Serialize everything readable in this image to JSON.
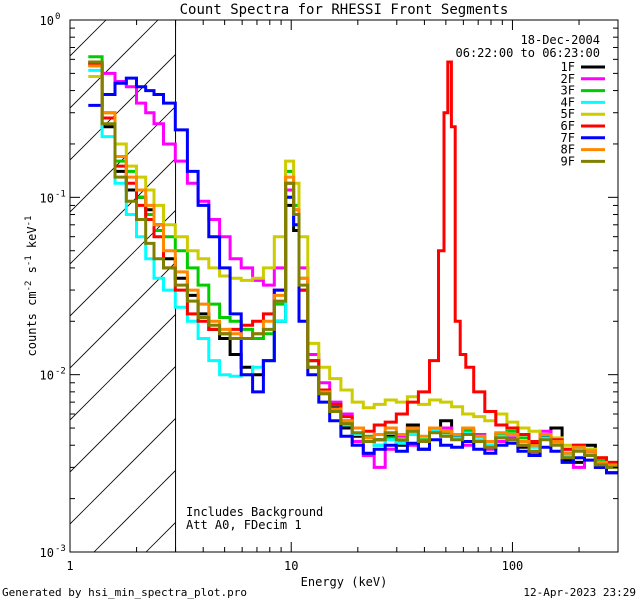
{
  "chart_data": {
    "type": "line",
    "title": "Count Spectra for RHESSI Front Segments",
    "xlabel": "Energy (keV)",
    "ylabel_parts": [
      "counts cm",
      "-2",
      " s",
      "-1",
      " keV",
      "-1"
    ],
    "x_scale": "log",
    "y_scale": "log",
    "xlim": [
      1.0,
      300.0
    ],
    "ylim": [
      0.001,
      1.0
    ],
    "x_tick_labels": [
      {
        "value": 10,
        "label": "10"
      },
      {
        "value": 100,
        "label": "100"
      }
    ],
    "y_tick_labels": [
      {
        "value": 1.0,
        "mantissa": "10",
        "exp": "0"
      },
      {
        "value": 0.1,
        "mantissa": "10",
        "exp": "-1"
      },
      {
        "value": 0.01,
        "mantissa": "10",
        "exp": "-2"
      },
      {
        "value": 0.001,
        "mantissa": "10",
        "exp": "-3"
      }
    ],
    "hatched_region": {
      "x_from": 1.0,
      "x_to": 3.0,
      "y_from": 0.001,
      "y_to": 1.0
    },
    "annotations": {
      "date": "18-Dec-2004",
      "time_range": "06:22:00 to 06:23:00",
      "note_line1": "Includes Background",
      "note_line2": "Att A0, FDecim 1"
    },
    "legend_position": "top-right",
    "series": [
      {
        "name": "1F",
        "color": "#000000",
        "x": [
          1.3,
          1.5,
          1.7,
          1.9,
          2.1,
          2.3,
          2.5,
          2.8,
          3.2,
          3.6,
          4.0,
          4.5,
          5.0,
          5.6,
          6.3,
          7.1,
          7.9,
          8.9,
          10.0,
          10.5,
          11.2,
          12.6,
          14.1,
          15.8,
          17.8,
          20,
          22.4,
          25.1,
          28.2,
          31.6,
          35.5,
          39.8,
          44.7,
          50.1,
          56.2,
          63.1,
          70.8,
          79.4,
          89.1,
          100,
          112,
          126,
          141,
          158,
          178,
          200,
          224,
          251,
          282
        ],
        "values": [
          0.56,
          0.25,
          0.14,
          0.11,
          0.1,
          0.085,
          0.07,
          0.045,
          0.035,
          0.028,
          0.022,
          0.018,
          0.016,
          0.013,
          0.011,
          0.01,
          0.012,
          0.02,
          0.09,
          0.065,
          0.03,
          0.012,
          0.008,
          0.0065,
          0.005,
          0.0045,
          0.0042,
          0.0043,
          0.0045,
          0.004,
          0.0052,
          0.0038,
          0.005,
          0.0055,
          0.0045,
          0.0048,
          0.0042,
          0.004,
          0.0046,
          0.0044,
          0.0039,
          0.0041,
          0.0045,
          0.005,
          0.0033,
          0.0032,
          0.004,
          0.003,
          0.0028
        ]
      },
      {
        "name": "2F",
        "color": "#ff00ff",
        "x": [
          1.3,
          1.5,
          1.7,
          1.9,
          2.1,
          2.3,
          2.5,
          2.8,
          3.2,
          3.6,
          4.0,
          4.5,
          5.0,
          5.6,
          6.3,
          7.1,
          7.9,
          8.9,
          10.0,
          10.5,
          11.2,
          12.6,
          14.1,
          15.8,
          17.8,
          20,
          22.4,
          25.1,
          28.2,
          31.6,
          35.5,
          39.8,
          44.7,
          50.1,
          56.2,
          63.1,
          70.8,
          79.4,
          89.1,
          100,
          112,
          126,
          141,
          158,
          178,
          200,
          224,
          251,
          282
        ],
        "values": [
          0.58,
          0.5,
          0.45,
          0.42,
          0.34,
          0.3,
          0.26,
          0.2,
          0.16,
          0.12,
          0.095,
          0.075,
          0.06,
          0.045,
          0.04,
          0.034,
          0.032,
          0.04,
          0.11,
          0.085,
          0.04,
          0.013,
          0.009,
          0.007,
          0.006,
          0.0042,
          0.0035,
          0.003,
          0.0038,
          0.0045,
          0.004,
          0.0042,
          0.0048,
          0.005,
          0.0044,
          0.004,
          0.0046,
          0.0038,
          0.0042,
          0.0044,
          0.004,
          0.0036,
          0.0048,
          0.0042,
          0.0038,
          0.003,
          0.0036,
          0.0032,
          0.003
        ]
      },
      {
        "name": "3F",
        "color": "#00cc00",
        "x": [
          1.3,
          1.5,
          1.7,
          1.9,
          2.1,
          2.3,
          2.5,
          2.8,
          3.2,
          3.6,
          4.0,
          4.5,
          5.0,
          5.6,
          6.3,
          7.1,
          7.9,
          8.9,
          10.0,
          10.5,
          11.2,
          12.6,
          14.1,
          15.8,
          17.8,
          20,
          22.4,
          25.1,
          28.2,
          31.6,
          35.5,
          39.8,
          44.7,
          50.1,
          56.2,
          63.1,
          70.8,
          79.4,
          89.1,
          100,
          112,
          126,
          141,
          158,
          178,
          200,
          224,
          251,
          282
        ],
        "values": [
          0.62,
          0.3,
          0.16,
          0.14,
          0.1,
          0.08,
          0.065,
          0.06,
          0.05,
          0.04,
          0.032,
          0.025,
          0.021,
          0.02,
          0.018,
          0.016,
          0.017,
          0.025,
          0.14,
          0.09,
          0.035,
          0.012,
          0.008,
          0.0068,
          0.0055,
          0.005,
          0.0045,
          0.004,
          0.0044,
          0.0042,
          0.0048,
          0.0043,
          0.005,
          0.0047,
          0.0046,
          0.0049,
          0.0045,
          0.0042,
          0.0046,
          0.0048,
          0.0044,
          0.004,
          0.0046,
          0.0043,
          0.0036,
          0.004,
          0.0038,
          0.0033,
          0.0031
        ]
      },
      {
        "name": "4F",
        "color": "#00ffff",
        "x": [
          1.3,
          1.5,
          1.7,
          1.9,
          2.1,
          2.3,
          2.5,
          2.8,
          3.2,
          3.6,
          4.0,
          4.5,
          5.0,
          5.6,
          6.3,
          7.1,
          7.9,
          8.9,
          10.0,
          10.5,
          11.2,
          12.6,
          14.1,
          15.8,
          17.8,
          20,
          22.4,
          25.1,
          28.2,
          31.6,
          35.5,
          39.8,
          44.7,
          50.1,
          56.2,
          63.1,
          70.8,
          79.4,
          89.1,
          100,
          112,
          126,
          141,
          158,
          178,
          200,
          224,
          251,
          282
        ],
        "values": [
          0.52,
          0.22,
          0.12,
          0.08,
          0.06,
          0.045,
          0.035,
          0.03,
          0.024,
          0.02,
          0.016,
          0.012,
          0.01,
          0.0098,
          0.01,
          0.011,
          0.012,
          0.02,
          0.1,
          0.07,
          0.03,
          0.011,
          0.0078,
          0.0062,
          0.0052,
          0.0046,
          0.0042,
          0.004,
          0.0043,
          0.0041,
          0.0046,
          0.0042,
          0.0048,
          0.0045,
          0.0044,
          0.0047,
          0.0043,
          0.004,
          0.0045,
          0.0046,
          0.0042,
          0.0039,
          0.0044,
          0.0041,
          0.0035,
          0.0038,
          0.0036,
          0.0032,
          0.003
        ]
      },
      {
        "name": "5F",
        "color": "#cccc00",
        "x": [
          1.3,
          1.5,
          1.7,
          1.9,
          2.1,
          2.3,
          2.5,
          2.8,
          3.2,
          3.6,
          4.0,
          4.5,
          5.0,
          5.6,
          6.3,
          7.1,
          7.9,
          8.9,
          10.0,
          10.5,
          11.2,
          12.6,
          14.1,
          15.8,
          17.8,
          20,
          22.4,
          25.1,
          28.2,
          31.6,
          35.5,
          39.8,
          44.7,
          50.1,
          56.2,
          63.1,
          70.8,
          79.4,
          89.1,
          100,
          112,
          126,
          141,
          158,
          178,
          200,
          224,
          251,
          282
        ],
        "values": [
          0.48,
          0.3,
          0.2,
          0.15,
          0.13,
          0.11,
          0.09,
          0.07,
          0.06,
          0.05,
          0.045,
          0.04,
          0.036,
          0.035,
          0.034,
          0.035,
          0.04,
          0.06,
          0.16,
          0.12,
          0.06,
          0.015,
          0.011,
          0.0095,
          0.0082,
          0.007,
          0.0065,
          0.0068,
          0.0072,
          0.007,
          0.0075,
          0.0068,
          0.0072,
          0.007,
          0.0066,
          0.006,
          0.0058,
          0.0055,
          0.006,
          0.0054,
          0.005,
          0.0048,
          0.0046,
          0.0044,
          0.004,
          0.004,
          0.0038,
          0.0034,
          0.0032
        ]
      },
      {
        "name": "6F",
        "color": "#ff0000",
        "x": [
          1.3,
          1.5,
          1.7,
          1.9,
          2.1,
          2.3,
          2.5,
          2.8,
          3.2,
          3.6,
          4.0,
          4.5,
          5.0,
          5.6,
          6.3,
          7.1,
          7.9,
          8.9,
          10.0,
          10.5,
          11.2,
          12.6,
          14.1,
          15.8,
          17.8,
          20,
          22.4,
          25.1,
          28.2,
          31.6,
          35.5,
          39.8,
          44.7,
          48.0,
          50.1,
          52.0,
          54.0,
          56.2,
          60.0,
          63.1,
          70.8,
          79.4,
          89.1,
          100,
          112,
          126,
          141,
          158,
          178,
          200,
          224,
          251,
          282
        ],
        "values": [
          0.57,
          0.28,
          0.15,
          0.12,
          0.09,
          0.075,
          0.06,
          0.04,
          0.03,
          0.022,
          0.02,
          0.018,
          0.017,
          0.018,
          0.019,
          0.02,
          0.022,
          0.03,
          0.12,
          0.08,
          0.03,
          0.012,
          0.0082,
          0.0068,
          0.0058,
          0.005,
          0.0048,
          0.0052,
          0.0054,
          0.006,
          0.007,
          0.008,
          0.012,
          0.05,
          0.3,
          0.58,
          0.25,
          0.02,
          0.013,
          0.011,
          0.008,
          0.0062,
          0.0052,
          0.005,
          0.0046,
          0.0042,
          0.0046,
          0.0043,
          0.0038,
          0.004,
          0.0037,
          0.0034,
          0.0032
        ]
      },
      {
        "name": "7F",
        "color": "#0000ff",
        "x": [
          1.3,
          1.5,
          1.7,
          1.9,
          2.1,
          2.3,
          2.5,
          2.8,
          3.2,
          3.6,
          4.0,
          4.5,
          5.0,
          5.6,
          6.3,
          7.1,
          7.9,
          8.9,
          10.0,
          10.5,
          11.2,
          12.6,
          14.1,
          15.8,
          17.8,
          20,
          22.4,
          25.1,
          28.2,
          31.6,
          35.5,
          39.8,
          44.7,
          50.1,
          56.2,
          63.1,
          70.8,
          79.4,
          89.1,
          100,
          112,
          126,
          141,
          158,
          178,
          200,
          224,
          251,
          282
        ],
        "values": [
          0.33,
          0.38,
          0.44,
          0.47,
          0.42,
          0.4,
          0.38,
          0.34,
          0.24,
          0.14,
          0.09,
          0.06,
          0.04,
          0.022,
          0.01,
          0.008,
          0.012,
          0.03,
          0.1,
          0.07,
          0.02,
          0.01,
          0.007,
          0.0055,
          0.0045,
          0.004,
          0.0036,
          0.0038,
          0.004,
          0.0037,
          0.0041,
          0.0038,
          0.0043,
          0.004,
          0.0039,
          0.0042,
          0.0038,
          0.0036,
          0.004,
          0.0041,
          0.0037,
          0.0035,
          0.0039,
          0.0037,
          0.0032,
          0.0034,
          0.0033,
          0.003,
          0.0028
        ]
      },
      {
        "name": "8F",
        "color": "#ff8800",
        "x": [
          1.3,
          1.5,
          1.7,
          1.9,
          2.1,
          2.3,
          2.5,
          2.8,
          3.2,
          3.6,
          4.0,
          4.5,
          5.0,
          5.6,
          6.3,
          7.1,
          7.9,
          8.9,
          10.0,
          10.5,
          11.2,
          12.6,
          14.1,
          15.8,
          17.8,
          20,
          22.4,
          25.1,
          28.2,
          31.6,
          35.5,
          39.8,
          44.7,
          50.1,
          56.2,
          63.1,
          70.8,
          79.4,
          89.1,
          100,
          112,
          126,
          141,
          158,
          178,
          200,
          224,
          251,
          282
        ],
        "values": [
          0.55,
          0.3,
          0.17,
          0.13,
          0.11,
          0.09,
          0.07,
          0.05,
          0.038,
          0.03,
          0.025,
          0.02,
          0.018,
          0.017,
          0.016,
          0.017,
          0.02,
          0.028,
          0.13,
          0.085,
          0.035,
          0.011,
          0.008,
          0.0064,
          0.0055,
          0.005,
          0.0044,
          0.0046,
          0.005,
          0.0046,
          0.005,
          0.0045,
          0.005,
          0.0048,
          0.0046,
          0.005,
          0.0045,
          0.0042,
          0.0047,
          0.0046,
          0.0042,
          0.004,
          0.0046,
          0.0042,
          0.0036,
          0.0039,
          0.0037,
          0.0032,
          0.0031
        ]
      },
      {
        "name": "9F",
        "color": "#808000",
        "x": [
          1.3,
          1.5,
          1.7,
          1.9,
          2.1,
          2.3,
          2.5,
          2.8,
          3.2,
          3.6,
          4.0,
          4.5,
          5.0,
          5.6,
          6.3,
          7.1,
          7.9,
          8.9,
          10.0,
          10.5,
          11.2,
          12.6,
          14.1,
          15.8,
          17.8,
          20,
          22.4,
          25.1,
          28.2,
          31.6,
          35.5,
          39.8,
          44.7,
          50.1,
          56.2,
          63.1,
          70.8,
          79.4,
          89.1,
          100,
          112,
          126,
          141,
          158,
          178,
          200,
          224,
          251,
          282
        ],
        "values": [
          0.58,
          0.26,
          0.13,
          0.095,
          0.075,
          0.055,
          0.045,
          0.04,
          0.032,
          0.026,
          0.021,
          0.019,
          0.017,
          0.016,
          0.016,
          0.017,
          0.018,
          0.026,
          0.12,
          0.08,
          0.032,
          0.011,
          0.0078,
          0.0062,
          0.0053,
          0.0047,
          0.0042,
          0.0043,
          0.0047,
          0.0043,
          0.0048,
          0.0042,
          0.0047,
          0.0045,
          0.0043,
          0.0046,
          0.0042,
          0.0039,
          0.0044,
          0.0043,
          0.004,
          0.0037,
          0.0043,
          0.004,
          0.0034,
          0.0037,
          0.0035,
          0.0031,
          0.003
        ]
      }
    ]
  },
  "footer": {
    "generated_by": "Generated by hsi_min_spectra_plot.pro",
    "timestamp": "12-Apr-2023 23:29"
  }
}
